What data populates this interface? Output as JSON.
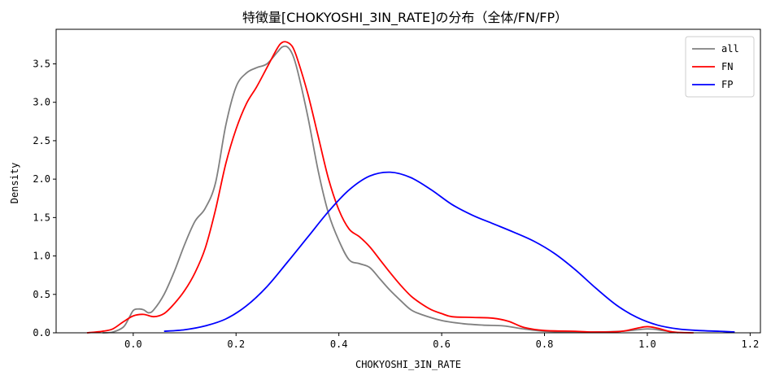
{
  "chart_data": {
    "type": "line",
    "title": "特徴量[CHOKYOSHI_3IN_RATE]の分布（全体/FN/FP）",
    "xlabel": "CHOKYOSHI_3IN_RATE",
    "ylabel": "Density",
    "xlim": [
      -0.15,
      1.22
    ],
    "ylim": [
      0.0,
      3.95
    ],
    "xticks": [
      0.0,
      0.2,
      0.4,
      0.6,
      0.8,
      1.0,
      1.2
    ],
    "xtick_labels": [
      "0.0",
      "0.2",
      "0.4",
      "0.6",
      "0.8",
      "1.0",
      "1.2"
    ],
    "yticks": [
      0.0,
      0.5,
      1.0,
      1.5,
      2.0,
      2.5,
      3.0,
      3.5
    ],
    "ytick_labels": [
      "0.0",
      "0.5",
      "1.0",
      "1.5",
      "2.0",
      "2.5",
      "3.0",
      "3.5"
    ],
    "grid": false,
    "legend_position": "top-right",
    "series": [
      {
        "name": "all",
        "color": "#808080",
        "points": [
          [
            -0.06,
            0.0
          ],
          [
            -0.04,
            0.01
          ],
          [
            -0.02,
            0.07
          ],
          [
            -0.01,
            0.17
          ],
          [
            0.0,
            0.29
          ],
          [
            0.01,
            0.31
          ],
          [
            0.02,
            0.3
          ],
          [
            0.03,
            0.26
          ],
          [
            0.04,
            0.3
          ],
          [
            0.06,
            0.5
          ],
          [
            0.08,
            0.8
          ],
          [
            0.1,
            1.15
          ],
          [
            0.12,
            1.45
          ],
          [
            0.14,
            1.62
          ],
          [
            0.16,
            1.95
          ],
          [
            0.18,
            2.7
          ],
          [
            0.2,
            3.2
          ],
          [
            0.22,
            3.38
          ],
          [
            0.24,
            3.45
          ],
          [
            0.26,
            3.5
          ],
          [
            0.28,
            3.65
          ],
          [
            0.29,
            3.72
          ],
          [
            0.3,
            3.72
          ],
          [
            0.31,
            3.62
          ],
          [
            0.32,
            3.4
          ],
          [
            0.34,
            2.8
          ],
          [
            0.36,
            2.1
          ],
          [
            0.38,
            1.55
          ],
          [
            0.4,
            1.2
          ],
          [
            0.42,
            0.95
          ],
          [
            0.44,
            0.9
          ],
          [
            0.46,
            0.85
          ],
          [
            0.48,
            0.7
          ],
          [
            0.5,
            0.55
          ],
          [
            0.52,
            0.42
          ],
          [
            0.54,
            0.3
          ],
          [
            0.56,
            0.24
          ],
          [
            0.6,
            0.16
          ],
          [
            0.64,
            0.12
          ],
          [
            0.68,
            0.1
          ],
          [
            0.72,
            0.09
          ],
          [
            0.76,
            0.05
          ],
          [
            0.8,
            0.02
          ],
          [
            0.85,
            0.01
          ],
          [
            0.9,
            0.01
          ],
          [
            0.95,
            0.02
          ],
          [
            1.0,
            0.05
          ],
          [
            1.03,
            0.03
          ],
          [
            1.06,
            0.0
          ]
        ]
      },
      {
        "name": "FN",
        "color": "#ff0000",
        "points": [
          [
            -0.09,
            0.0
          ],
          [
            -0.06,
            0.02
          ],
          [
            -0.04,
            0.05
          ],
          [
            -0.02,
            0.14
          ],
          [
            0.0,
            0.22
          ],
          [
            0.02,
            0.24
          ],
          [
            0.04,
            0.21
          ],
          [
            0.06,
            0.25
          ],
          [
            0.08,
            0.38
          ],
          [
            0.1,
            0.55
          ],
          [
            0.12,
            0.78
          ],
          [
            0.14,
            1.1
          ],
          [
            0.16,
            1.6
          ],
          [
            0.18,
            2.2
          ],
          [
            0.2,
            2.65
          ],
          [
            0.22,
            2.98
          ],
          [
            0.24,
            3.2
          ],
          [
            0.26,
            3.45
          ],
          [
            0.28,
            3.7
          ],
          [
            0.29,
            3.78
          ],
          [
            0.3,
            3.78
          ],
          [
            0.31,
            3.72
          ],
          [
            0.32,
            3.55
          ],
          [
            0.34,
            3.1
          ],
          [
            0.36,
            2.55
          ],
          [
            0.38,
            2.0
          ],
          [
            0.4,
            1.6
          ],
          [
            0.42,
            1.35
          ],
          [
            0.44,
            1.25
          ],
          [
            0.46,
            1.12
          ],
          [
            0.48,
            0.95
          ],
          [
            0.5,
            0.78
          ],
          [
            0.52,
            0.62
          ],
          [
            0.54,
            0.48
          ],
          [
            0.56,
            0.38
          ],
          [
            0.58,
            0.3
          ],
          [
            0.6,
            0.25
          ],
          [
            0.62,
            0.21
          ],
          [
            0.66,
            0.2
          ],
          [
            0.7,
            0.19
          ],
          [
            0.73,
            0.15
          ],
          [
            0.76,
            0.07
          ],
          [
            0.8,
            0.03
          ],
          [
            0.86,
            0.02
          ],
          [
            0.9,
            0.01
          ],
          [
            0.95,
            0.02
          ],
          [
            0.98,
            0.06
          ],
          [
            1.0,
            0.08
          ],
          [
            1.02,
            0.06
          ],
          [
            1.05,
            0.01
          ],
          [
            1.09,
            0.0
          ]
        ]
      },
      {
        "name": "FP",
        "color": "#0000ff",
        "points": [
          [
            0.06,
            0.02
          ],
          [
            0.1,
            0.04
          ],
          [
            0.14,
            0.09
          ],
          [
            0.18,
            0.18
          ],
          [
            0.22,
            0.35
          ],
          [
            0.26,
            0.6
          ],
          [
            0.3,
            0.92
          ],
          [
            0.34,
            1.25
          ],
          [
            0.38,
            1.58
          ],
          [
            0.42,
            1.86
          ],
          [
            0.46,
            2.04
          ],
          [
            0.5,
            2.09
          ],
          [
            0.54,
            2.02
          ],
          [
            0.58,
            1.86
          ],
          [
            0.62,
            1.67
          ],
          [
            0.66,
            1.53
          ],
          [
            0.7,
            1.42
          ],
          [
            0.74,
            1.31
          ],
          [
            0.78,
            1.19
          ],
          [
            0.82,
            1.03
          ],
          [
            0.86,
            0.82
          ],
          [
            0.9,
            0.58
          ],
          [
            0.94,
            0.36
          ],
          [
            0.98,
            0.2
          ],
          [
            1.02,
            0.1
          ],
          [
            1.06,
            0.05
          ],
          [
            1.1,
            0.03
          ],
          [
            1.14,
            0.02
          ],
          [
            1.17,
            0.01
          ]
        ]
      }
    ]
  }
}
